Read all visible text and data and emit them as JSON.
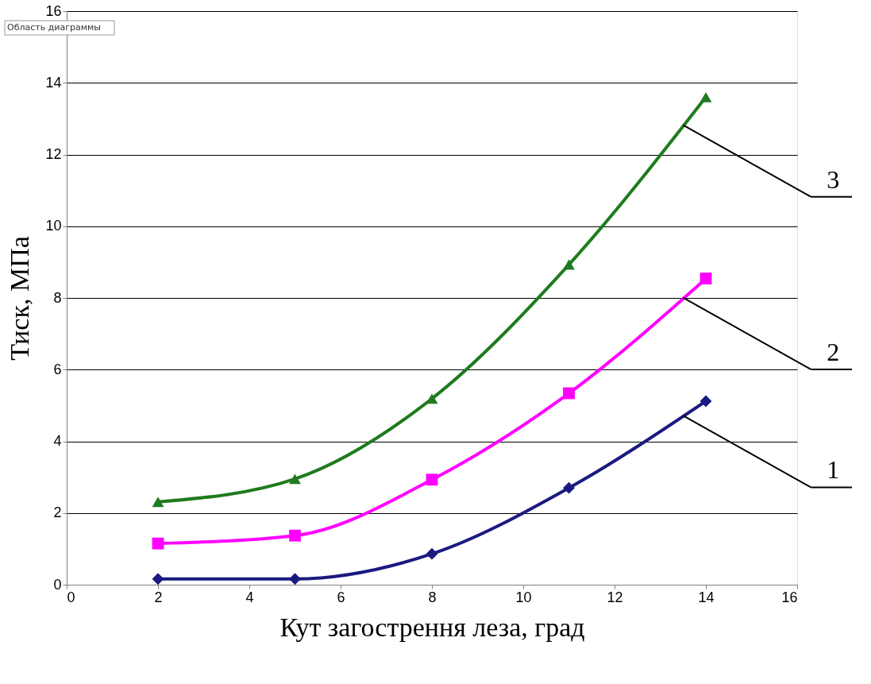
{
  "chart_data": {
    "type": "line",
    "xlabel": "Кут загострення леза, град",
    "ylabel": "Тиск, МПа",
    "annotations": [
      "Область диаграммы"
    ],
    "x": [
      2,
      5,
      8,
      11,
      14
    ],
    "series": [
      {
        "name": "1",
        "color": "#1a1a80",
        "marker": "diamond",
        "values": [
          0.16,
          0.16,
          0.86,
          2.7,
          5.12
        ]
      },
      {
        "name": "2",
        "color": "#ff00ff",
        "marker": "square",
        "values": [
          1.15,
          1.37,
          2.93,
          5.34,
          8.54
        ]
      },
      {
        "name": "3",
        "color": "#1e7b1e",
        "marker": "triangle",
        "values": [
          2.31,
          2.95,
          5.19,
          8.93,
          13.6
        ]
      }
    ],
    "xlim": [
      0,
      16
    ],
    "xticks": [
      0,
      2,
      4,
      6,
      8,
      10,
      12,
      14,
      16
    ],
    "ylim": [
      0,
      16
    ],
    "yticks": [
      0,
      2,
      4,
      6,
      8,
      10,
      12,
      14,
      16
    ],
    "grid": "y",
    "line_style": "solid"
  }
}
